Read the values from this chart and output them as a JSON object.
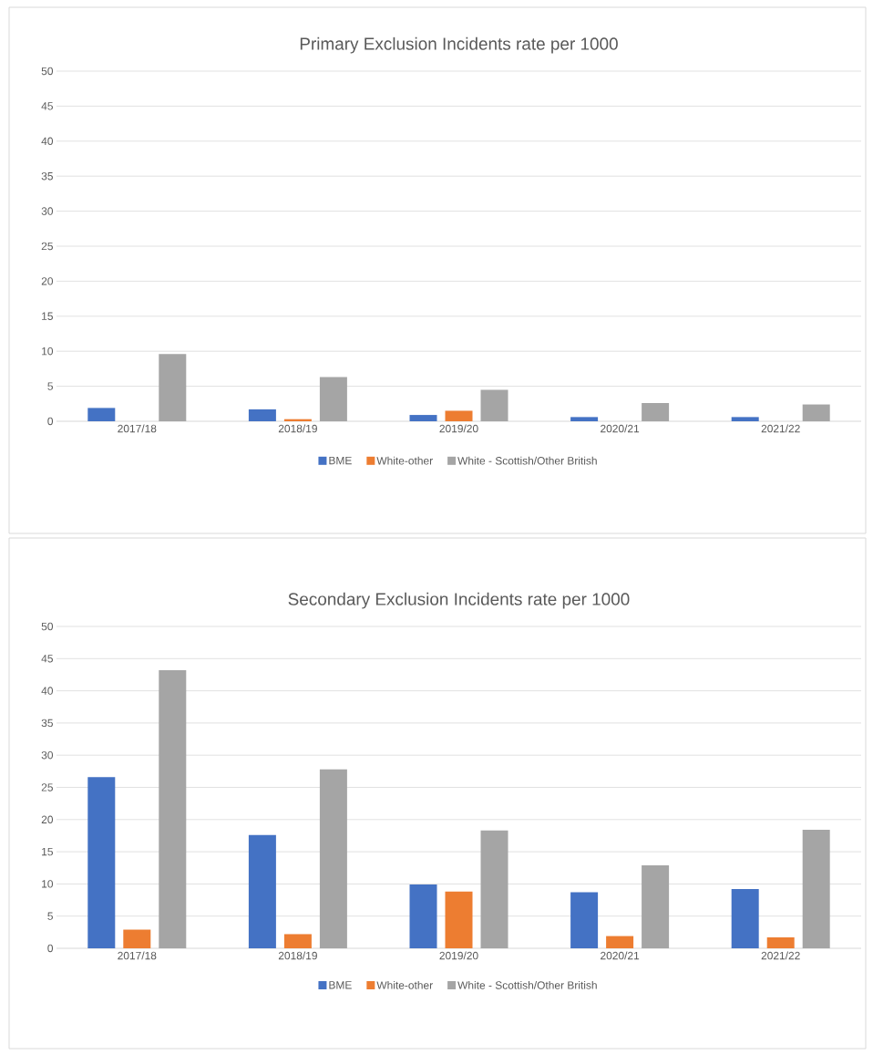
{
  "chart_data": [
    {
      "type": "bar",
      "title": "Primary Exclusion Incidents rate per 1000",
      "categories": [
        "2017/18",
        "2018/19",
        "2019/20",
        "2020/21",
        "2021/22"
      ],
      "series": [
        {
          "name": "BME",
          "color": "#4472c4",
          "values": [
            1.9,
            1.7,
            0.9,
            0.6,
            0.6
          ]
        },
        {
          "name": "White-other",
          "color": "#ed7d31",
          "values": [
            0,
            0.3,
            1.5,
            0,
            0
          ]
        },
        {
          "name": "White - Scottish/Other British",
          "color": "#a5a5a5",
          "values": [
            9.6,
            6.3,
            4.5,
            2.6,
            2.4
          ]
        }
      ],
      "ylim": [
        0,
        50
      ],
      "yticks": [
        0,
        5,
        10,
        15,
        20,
        25,
        30,
        35,
        40,
        45,
        50
      ],
      "grid": "y",
      "legend": "bottom"
    },
    {
      "type": "bar",
      "title": "Secondary Exclusion Incidents rate per 1000",
      "categories": [
        "2017/18",
        "2018/19",
        "2019/20",
        "2020/21",
        "2021/22"
      ],
      "series": [
        {
          "name": "BME",
          "color": "#4472c4",
          "values": [
            26.6,
            17.6,
            9.9,
            8.7,
            9.2
          ]
        },
        {
          "name": "White-other",
          "color": "#ed7d31",
          "values": [
            2.9,
            2.2,
            8.8,
            1.9,
            1.7
          ]
        },
        {
          "name": "White - Scottish/Other British",
          "color": "#a5a5a5",
          "values": [
            43.2,
            27.8,
            18.3,
            12.9,
            18.4
          ]
        }
      ],
      "ylim": [
        0,
        50
      ],
      "yticks": [
        0,
        5,
        10,
        15,
        20,
        25,
        30,
        35,
        40,
        45,
        50
      ],
      "grid": "y",
      "legend": "bottom"
    }
  ]
}
